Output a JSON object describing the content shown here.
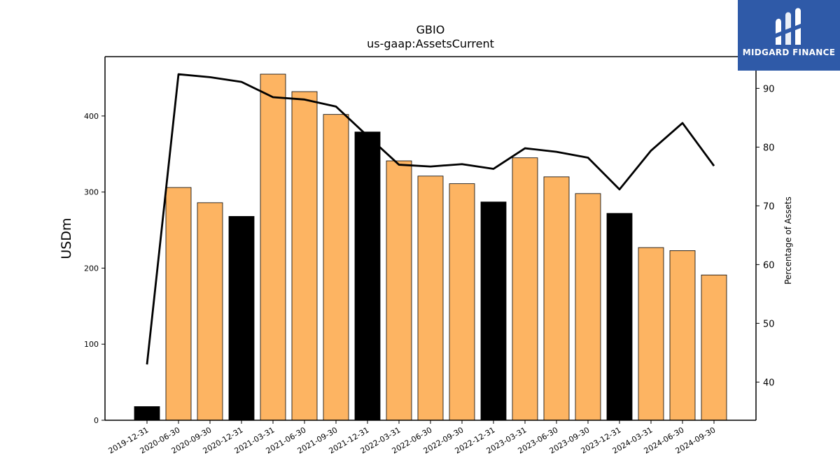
{
  "brand": {
    "name": "MIDGARD FINANCE",
    "bg_color": "#2f5aa8"
  },
  "chart_data": {
    "type": "bar",
    "title": "GBIO",
    "subtitle": "us-gaap:AssetsCurrent",
    "ylabel": "USDm",
    "y2label": "Percentage of Assets",
    "ylim": [
      0,
      478
    ],
    "y2lim": [
      33.5,
      95.4
    ],
    "yticks": [
      0,
      100,
      200,
      300,
      400
    ],
    "y2ticks": [
      40,
      50,
      60,
      70,
      80,
      90
    ],
    "categories": [
      "2019-12-31",
      "2020-06-30",
      "2020-09-30",
      "2020-12-31",
      "2021-03-31",
      "2021-06-30",
      "2021-09-30",
      "2021-12-31",
      "2022-03-31",
      "2022-06-30",
      "2022-09-30",
      "2022-12-31",
      "2023-03-31",
      "2023-06-30",
      "2023-09-30",
      "2023-12-31",
      "2024-03-31",
      "2024-06-30",
      "2024-09-30"
    ],
    "series": [
      {
        "type": "bar",
        "values": [
          18,
          306,
          286,
          268,
          455,
          432,
          402,
          379,
          341,
          321,
          311,
          287,
          345,
          320,
          298,
          272,
          227,
          223,
          191
        ],
        "fiscal_year_end": [
          true,
          false,
          false,
          true,
          false,
          false,
          false,
          true,
          false,
          false,
          false,
          true,
          false,
          false,
          false,
          true,
          false,
          false,
          false
        ]
      },
      {
        "type": "line",
        "axis": "right",
        "values": [
          43.0,
          92.4,
          91.9,
          91.1,
          88.5,
          88.1,
          86.9,
          81.9,
          77.0,
          76.7,
          77.1,
          76.3,
          79.8,
          79.2,
          78.2,
          72.8,
          79.4,
          84.1,
          76.8
        ]
      }
    ],
    "colors": {
      "bar": "#fdb462",
      "bar_year_end": "#000000",
      "line": "#000000"
    }
  }
}
